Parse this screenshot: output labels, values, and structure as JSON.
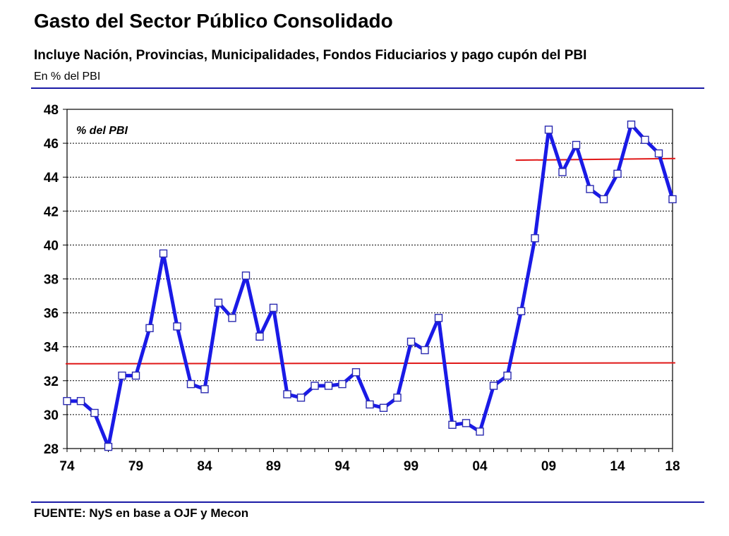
{
  "header": {
    "title": "Gasto del Sector Público Consolidado",
    "subtitle": "Incluye Nación, Provincias, Municipalidades, Fondos Fiduciarios y pago cupón del PBI",
    "unit": "En % del PBI"
  },
  "footer": {
    "source": "FUENTE: NyS en base a OJF y Mecon"
  },
  "colors": {
    "series": "#1a1ae6",
    "average": "#e01818",
    "rule": "#1a1aa6",
    "marker_fill": "#ffffff"
  },
  "chart_data": {
    "type": "line",
    "annotation": "% del PBI",
    "x": [
      1974,
      1975,
      1976,
      1977,
      1978,
      1979,
      1980,
      1981,
      1982,
      1983,
      1984,
      1985,
      1986,
      1987,
      1988,
      1989,
      1990,
      1991,
      1992,
      1993,
      1994,
      1995,
      1996,
      1997,
      1998,
      1999,
      2000,
      2001,
      2002,
      2003,
      2004,
      2005,
      2006,
      2007,
      2008,
      2009,
      2010,
      2011,
      2012,
      2013,
      2014,
      2015,
      2016,
      2017,
      2018
    ],
    "x_tick_labels": [
      {
        "x": 1974,
        "label": "74"
      },
      {
        "x": 1979,
        "label": "79"
      },
      {
        "x": 1984,
        "label": "84"
      },
      {
        "x": 1989,
        "label": "89"
      },
      {
        "x": 1994,
        "label": "94"
      },
      {
        "x": 1999,
        "label": "99"
      },
      {
        "x": 2004,
        "label": "04"
      },
      {
        "x": 2009,
        "label": "09"
      },
      {
        "x": 2014,
        "label": "14"
      },
      {
        "x": 2018,
        "label": "18"
      }
    ],
    "series": [
      {
        "values": [
          30.8,
          30.8,
          30.1,
          28.1,
          32.3,
          32.3,
          35.1,
          39.5,
          35.2,
          31.8,
          31.5,
          36.6,
          35.7,
          38.2,
          34.6,
          36.3,
          31.2,
          31.0,
          31.7,
          31.7,
          31.8,
          32.5,
          30.6,
          30.4,
          31.0,
          34.3,
          33.8,
          35.7,
          29.4,
          29.5,
          29.0,
          31.7,
          32.3,
          36.1,
          40.4,
          46.8,
          44.3,
          45.9,
          43.3,
          42.7,
          44.2,
          47.1,
          46.2,
          45.4,
          42.7
        ]
      }
    ],
    "reference_lines": [
      {
        "x": [
          1973.9,
          2018.2
        ],
        "y": [
          33.0,
          33.05
        ]
      },
      {
        "x": [
          2006.6,
          2018.2
        ],
        "y": [
          45.0,
          45.1
        ]
      }
    ],
    "xlim": [
      1974,
      2018
    ],
    "ylim": [
      28,
      48
    ],
    "y_ticks": [
      28,
      30,
      32,
      34,
      36,
      38,
      40,
      42,
      44,
      46,
      48
    ],
    "grid": true
  }
}
